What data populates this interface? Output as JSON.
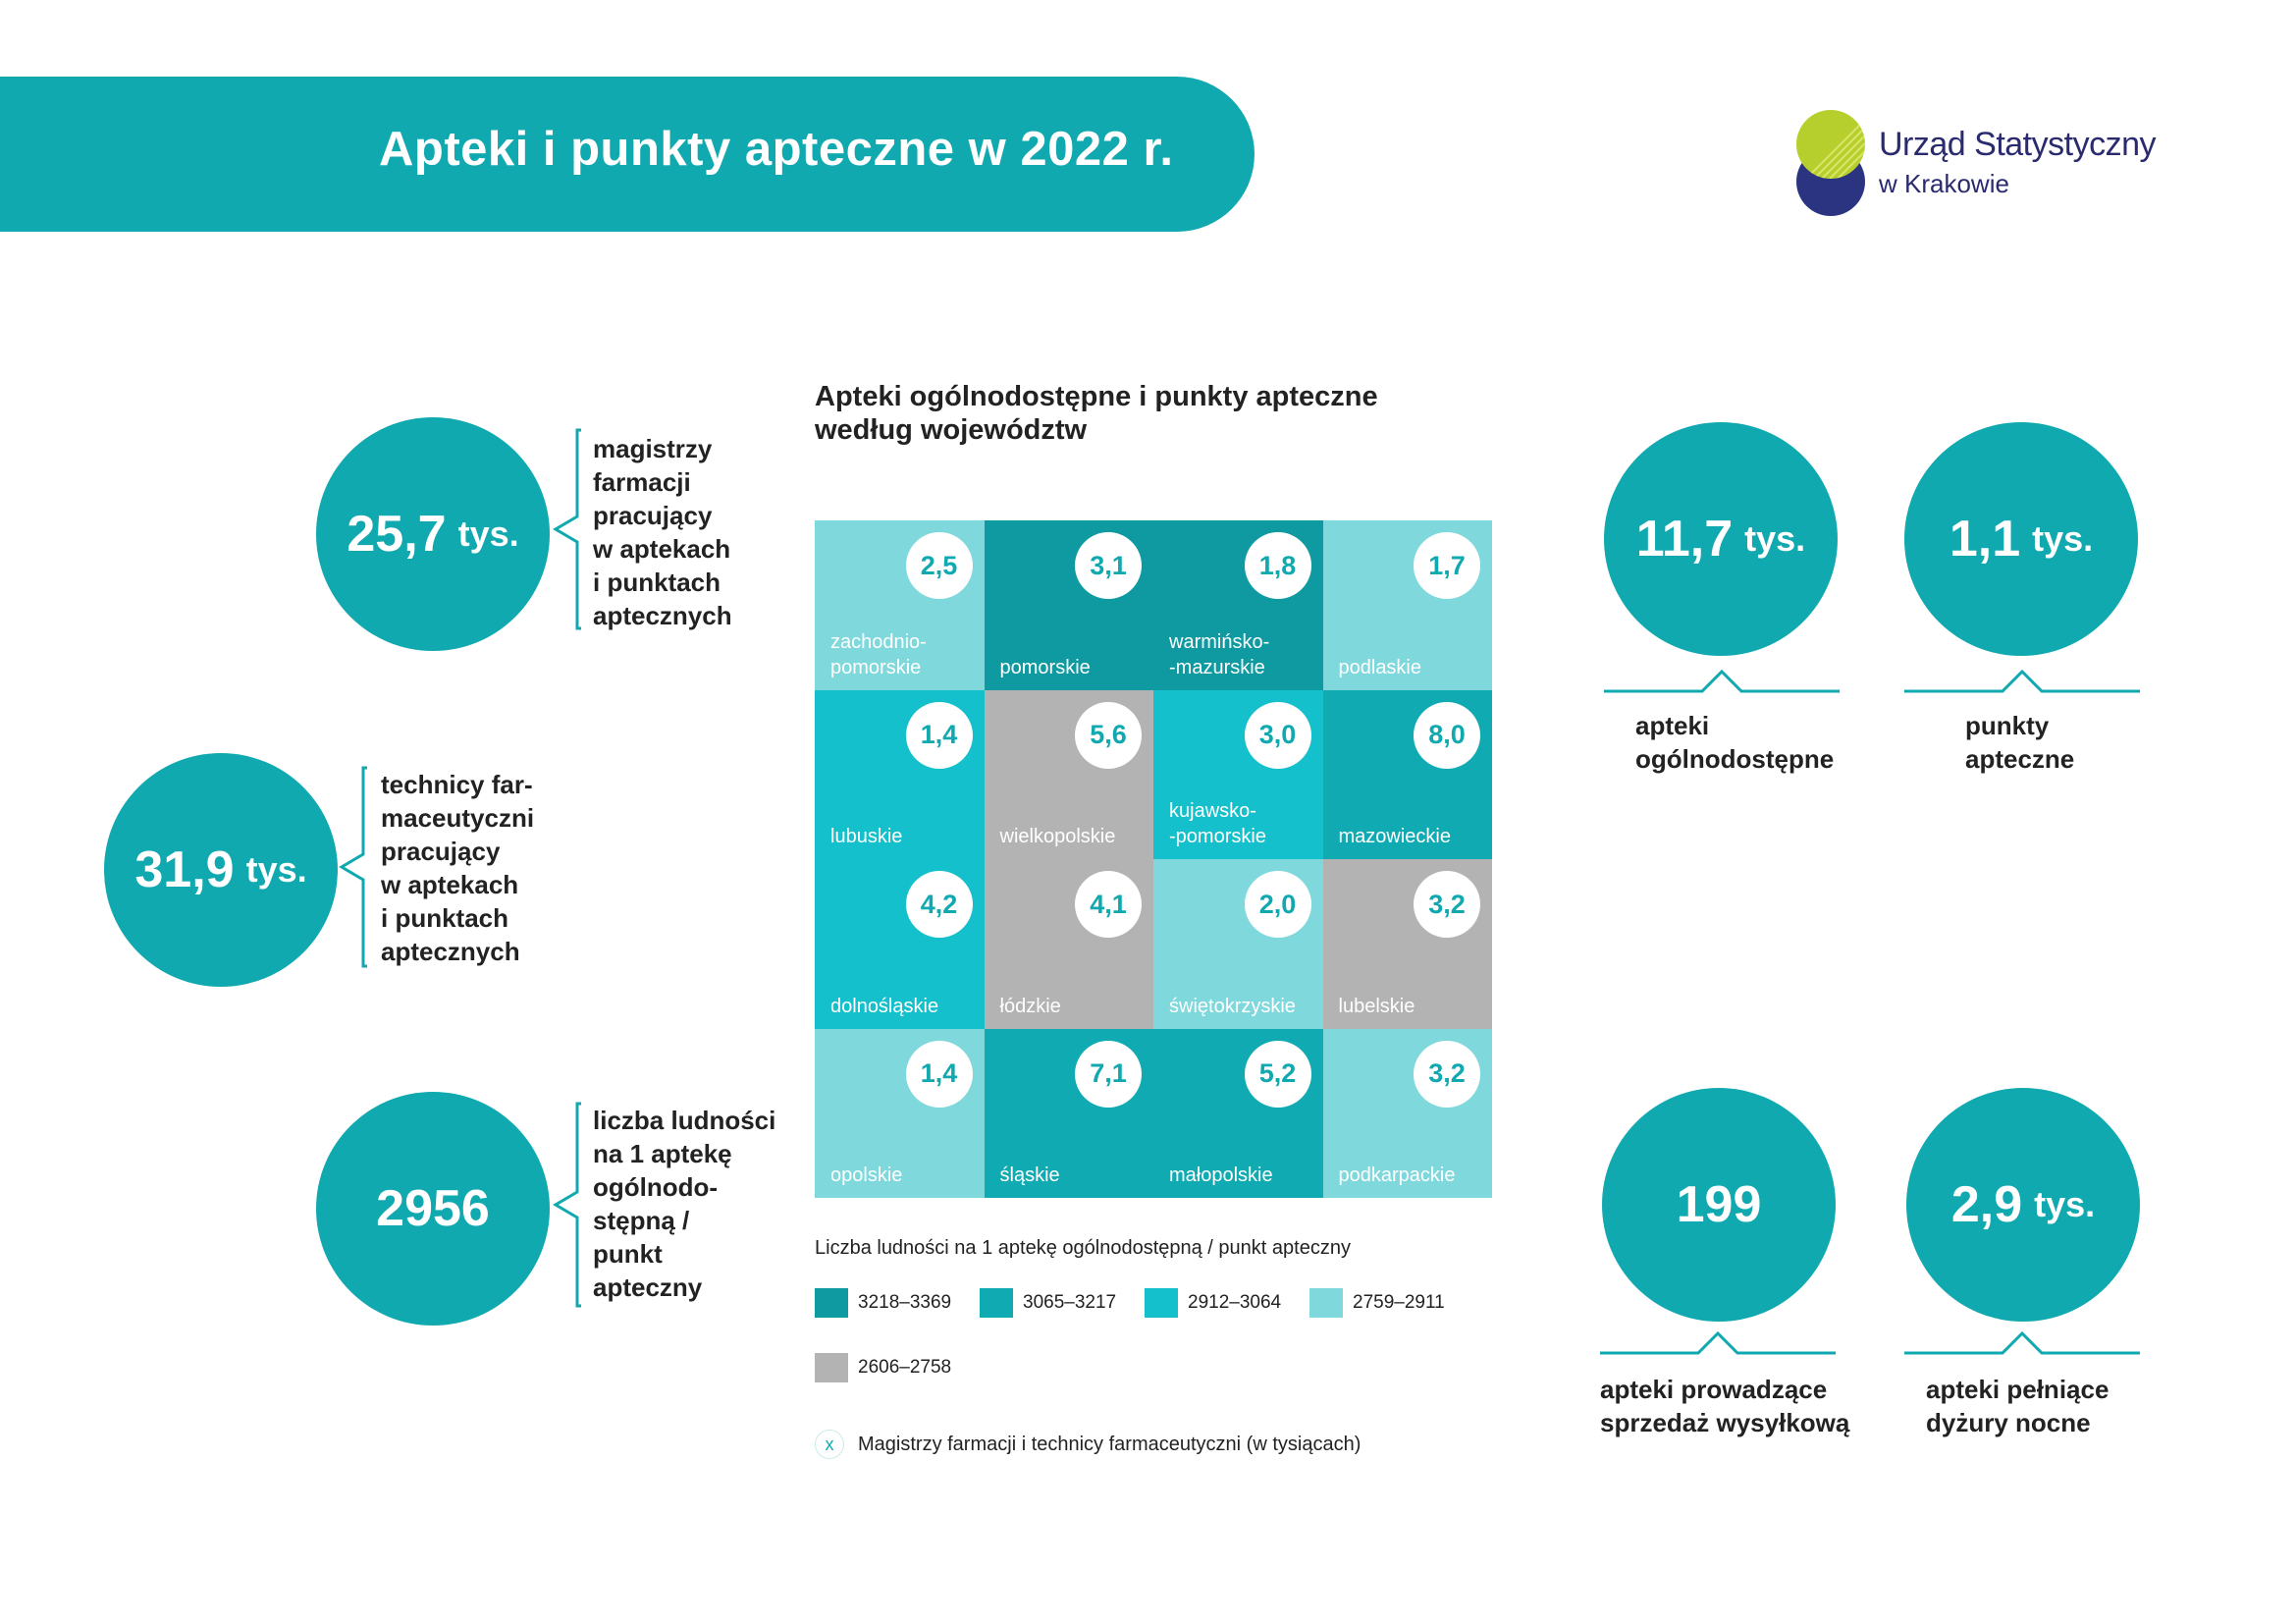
{
  "header": {
    "title": "Apteki i punkty apteczne w 2022 r."
  },
  "logo": {
    "name": "Urząd Statystyczny",
    "sub": "w Krakowie"
  },
  "colors": {
    "teal_main": "#11a9b0",
    "range_1": "#0e9aa0",
    "range_2": "#10aab2",
    "range_3": "#14c0cb",
    "range_4": "#7fd8dc",
    "range_5": "#b3b3b3"
  },
  "left_stats": [
    {
      "value": "25,7",
      "unit": "tys.",
      "label_lines": [
        "magistrzy",
        "farmacji",
        "pracujący",
        "w aptekach",
        "i punktach",
        "aptecznych"
      ]
    },
    {
      "value": "31,9",
      "unit": "tys.",
      "label_lines": [
        "technicy far-",
        "maceutyczni",
        "pracujący",
        "w aptekach",
        "i punktach",
        "aptecznych"
      ]
    },
    {
      "value": "2956",
      "unit": "",
      "label_lines": [
        "liczba ludności",
        "na 1 aptekę",
        "ogólnodo-",
        "stępną /",
        "punkt",
        "apteczny"
      ]
    }
  ],
  "map": {
    "title_lines": [
      "Apteki ogólnodostępne i punkty apteczne",
      "według województw"
    ],
    "cells": [
      {
        "name": "zachodnio-\npomorskie",
        "value": "2,5",
        "color": "#7fd8dc"
      },
      {
        "name": "pomorskie",
        "value": "3,1",
        "color": "#0e9aa0"
      },
      {
        "name": "warmińsko-\n-mazurskie",
        "value": "1,8",
        "color": "#0e9aa0"
      },
      {
        "name": "podlaskie",
        "value": "1,7",
        "color": "#7fd8dc"
      },
      {
        "name": "lubuskie",
        "value": "1,4",
        "color": "#14c0cb"
      },
      {
        "name": "wielkopolskie",
        "value": "5,6",
        "color": "#b3b3b3"
      },
      {
        "name": "kujawsko-\n-pomorskie",
        "value": "3,0",
        "color": "#14c0cb"
      },
      {
        "name": "mazowieckie",
        "value": "8,0",
        "color": "#10aab2"
      },
      {
        "name": "dolnośląskie",
        "value": "4,2",
        "color": "#14c0cb"
      },
      {
        "name": "łódzkie",
        "value": "4,1",
        "color": "#b3b3b3"
      },
      {
        "name": "świętokrzyskie",
        "value": "2,0",
        "color": "#7fd8dc"
      },
      {
        "name": "lubelskie",
        "value": "3,2",
        "color": "#b3b3b3"
      },
      {
        "name": "opolskie",
        "value": "1,4",
        "color": "#7fd8dc"
      },
      {
        "name": "śląskie",
        "value": "7,1",
        "color": "#10aab2"
      },
      {
        "name": "małopolskie",
        "value": "5,2",
        "color": "#10aab2"
      },
      {
        "name": "podkarpackie",
        "value": "3,2",
        "color": "#7fd8dc"
      }
    ],
    "legend_title": "Liczba ludności na 1 aptekę ogólnodostępną / punkt apteczny",
    "legend": [
      {
        "label": "3218–3369",
        "color": "#0e9aa0"
      },
      {
        "label": "3065–3217",
        "color": "#10aab2"
      },
      {
        "label": "2912–3064",
        "color": "#14c0cb"
      },
      {
        "label": "2759–2911",
        "color": "#7fd8dc"
      },
      {
        "label": "2606–2758",
        "color": "#b3b3b3"
      }
    ],
    "note_symbol": "x",
    "note": "Magistrzy farmacji i technicy farmaceutyczni (w tysiącach)"
  },
  "right_stats": [
    {
      "value": "11,7",
      "unit": "tys.",
      "label_lines": [
        "apteki",
        "ogólnodostępne"
      ]
    },
    {
      "value": "1,1",
      "unit": "tys.",
      "label_lines": [
        "punkty",
        "apteczne"
      ]
    },
    {
      "value": "199",
      "unit": "",
      "label_lines": [
        "apteki prowadzące",
        "sprzedaż wysyłkową"
      ]
    },
    {
      "value": "2,9",
      "unit": "tys.",
      "label_lines": [
        "apteki pełniące",
        "dyżury nocne"
      ]
    }
  ]
}
